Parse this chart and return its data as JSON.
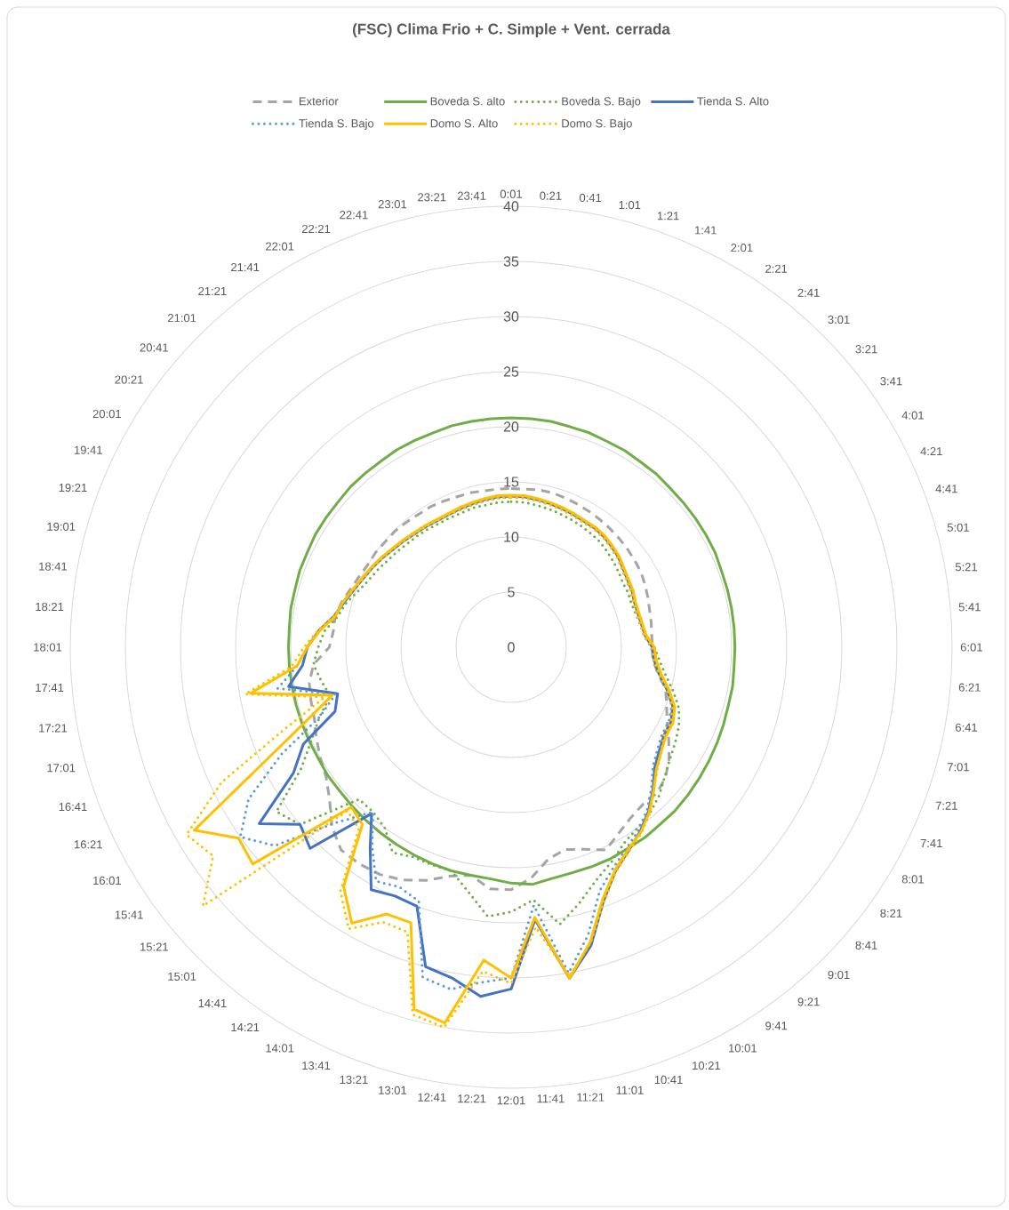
{
  "chart_data": {
    "type": "radar",
    "title": "(FSC) Clima Frio + C. Simple + Vent. cerrada",
    "categories": [
      "0:01",
      "0:21",
      "0:41",
      "1:01",
      "1:21",
      "1:41",
      "2:01",
      "2:21",
      "2:41",
      "3:01",
      "3:21",
      "3:41",
      "4:01",
      "4:21",
      "4:41",
      "5:01",
      "5:21",
      "5:41",
      "6:01",
      "6:21",
      "6:41",
      "7:01",
      "7:21",
      "7:41",
      "8:01",
      "8:21",
      "8:41",
      "9:01",
      "9:21",
      "9:41",
      "10:01",
      "10:21",
      "10:41",
      "11:01",
      "11:21",
      "11:41",
      "12:01",
      "12:21",
      "12:41",
      "13:01",
      "13:21",
      "13:41",
      "14:01",
      "14:21",
      "14:41",
      "15:01",
      "15:21",
      "15:41",
      "16:01",
      "16:21",
      "16:41",
      "17:01",
      "17:21",
      "17:41",
      "18:01",
      "18:21",
      "18:41",
      "19:01",
      "19:21",
      "19:41",
      "20:01",
      "20:21",
      "20:41",
      "21:01",
      "21:21",
      "21:41",
      "22:01",
      "22:21",
      "22:41",
      "23:01",
      "23:21",
      "23:41"
    ],
    "ylim": [
      0,
      40
    ],
    "yticks": [
      0,
      5,
      10,
      15,
      20,
      25,
      30,
      35,
      40
    ],
    "grid": true,
    "legend": "top",
    "series": [
      {
        "name": "Exterior",
        "color": "#a5a5a5",
        "line_style": "dashed",
        "values": [
          14.4,
          14.4,
          14.5,
          14.5,
          14.4,
          14.3,
          14.2,
          14.1,
          14.0,
          13.9,
          13.8,
          13.7,
          13.6,
          13.4,
          13.2,
          13.0,
          12.9,
          12.8,
          12.8,
          12.9,
          13.5,
          14.5,
          15.0,
          15.6,
          16.5,
          17.5,
          18.3,
          18.7,
          18.6,
          18.9,
          19.5,
          20.3,
          19.5,
          19.0,
          19.5,
          21.0,
          22.0,
          22.0,
          21.0,
          21.5,
          22.5,
          23.3,
          23.8,
          24.0,
          24.0,
          23.0,
          21.5,
          20.5,
          20.0,
          19.5,
          19.0,
          18.8,
          18.6,
          18.0,
          16.5,
          16.2,
          16.2,
          15.9,
          15.5,
          15.2,
          15.0,
          15.0,
          14.9,
          14.9,
          14.8,
          14.7,
          14.7,
          14.6,
          14.5,
          14.5,
          14.4,
          14.4
        ]
      },
      {
        "name": "Boveda S. alto",
        "color": "#70ad47",
        "line_style": "solid",
        "values": [
          20.8,
          20.8,
          20.8,
          20.7,
          20.7,
          20.6,
          20.6,
          20.5,
          20.5,
          20.4,
          20.4,
          20.4,
          20.4,
          20.4,
          20.3,
          20.3,
          20.3,
          20.3,
          20.3,
          20.3,
          20.4,
          20.4,
          20.5,
          20.6,
          20.7,
          20.8,
          20.9,
          21.0,
          21.0,
          21.1,
          21.1,
          21.2,
          21.2,
          21.2,
          21.3,
          21.6,
          21.4,
          21.1,
          21.0,
          21.0,
          20.9,
          20.8,
          20.7,
          20.6,
          20.5,
          20.4,
          20.3,
          20.3,
          20.2,
          20.2,
          20.2,
          20.2,
          20.2,
          20.2,
          20.2,
          20.2,
          20.3,
          20.3,
          20.4,
          20.4,
          20.5,
          20.5,
          20.5,
          20.6,
          20.6,
          20.6,
          20.7,
          20.7,
          20.7,
          20.8,
          20.8,
          20.8
        ]
      },
      {
        "name": "Boveda S. Bajo",
        "color": "#70ad47",
        "line_style": "dotted",
        "values": [
          13.2,
          13.2,
          13.1,
          13.0,
          12.9,
          12.8,
          12.7,
          12.6,
          12.5,
          12.3,
          12.1,
          11.9,
          11.7,
          11.7,
          11.6,
          11.7,
          11.9,
          12.3,
          13.0,
          13.5,
          14.2,
          15.2,
          16.2,
          16.8,
          17.2,
          17.6,
          18.2,
          19.0,
          19.6,
          20.0,
          20.5,
          21.5,
          22.5,
          24.0,
          25.5,
          23.0,
          24.0,
          24.5,
          22.5,
          21.0,
          21.0,
          21.0,
          21.5,
          20.0,
          19.5,
          19.5,
          25.0,
          26.0,
          22.0,
          20.0,
          18.5,
          17.0,
          17.5,
          18.0,
          17.5,
          17.0,
          16.0,
          15.5,
          14.8,
          14.3,
          14.0,
          13.7,
          13.5,
          13.3,
          13.2,
          13.1,
          13.0,
          13.0,
          13.0,
          13.1,
          13.1,
          13.2
        ]
      },
      {
        "name": "Tienda S. Alto",
        "color": "#4472c4",
        "line_style": "solid",
        "values": [
          13.7,
          13.7,
          13.6,
          13.5,
          13.4,
          13.3,
          13.2,
          13.2,
          13.1,
          12.9,
          12.7,
          12.4,
          12.2,
          12.1,
          11.9,
          11.9,
          12.0,
          12.2,
          12.8,
          13.0,
          13.6,
          14.6,
          15.6,
          16.0,
          16.0,
          16.4,
          17.0,
          18.2,
          19.4,
          20.4,
          21.3,
          22.4,
          24.5,
          28.0,
          30.5,
          24.8,
          31.0,
          31.8,
          30.5,
          30.0,
          25.0,
          24.9,
          25.4,
          22.3,
          19.7,
          25.8,
          25.0,
          27.9,
          22.8,
          20.8,
          17.0,
          16.3,
          20.5,
          19.0,
          18.5,
          17.5,
          16.3,
          15.7,
          15.2,
          14.8,
          14.5,
          14.2,
          13.9,
          13.7,
          13.5,
          13.4,
          13.3,
          13.3,
          13.4,
          13.5,
          13.6,
          13.7
        ]
      },
      {
        "name": "Tienda S. Bajo",
        "color": "#5b9bd5",
        "line_style": "dotted",
        "values": [
          13.6,
          13.6,
          13.5,
          13.4,
          13.3,
          13.2,
          13.1,
          13.1,
          13.0,
          12.8,
          12.6,
          12.3,
          12.1,
          12.0,
          11.8,
          11.8,
          11.9,
          12.1,
          12.7,
          13.0,
          13.6,
          14.6,
          15.5,
          15.8,
          15.8,
          16.2,
          16.8,
          18.0,
          19.2,
          20.2,
          21.0,
          22.0,
          23.5,
          27.0,
          30.0,
          23.5,
          30.0,
          30.5,
          31.5,
          31.0,
          24.5,
          24.0,
          24.5,
          22.0,
          19.5,
          22.5,
          28.0,
          30.0,
          27.5,
          23.0,
          18.5,
          16.5,
          21.5,
          19.5,
          18.5,
          17.5,
          16.3,
          15.7,
          15.2,
          14.8,
          14.5,
          14.2,
          13.9,
          13.7,
          13.5,
          13.4,
          13.3,
          13.3,
          13.3,
          13.4,
          13.5,
          13.6
        ]
      },
      {
        "name": "Domo S. Alto",
        "color": "#ffc000",
        "line_style": "solid",
        "values": [
          13.8,
          13.8,
          13.7,
          13.6,
          13.5,
          13.4,
          13.3,
          13.3,
          13.2,
          13.0,
          12.8,
          12.5,
          12.3,
          12.2,
          12.0,
          12.0,
          12.1,
          12.3,
          13.0,
          13.2,
          13.8,
          14.8,
          15.8,
          16.2,
          16.2,
          16.6,
          17.2,
          18.3,
          19.5,
          20.5,
          21.2,
          22.3,
          24.3,
          27.7,
          30.5,
          24.6,
          30.0,
          28.5,
          34.6,
          34.0,
          26.6,
          26.7,
          28.9,
          26.5,
          21.0,
          20.5,
          30.6,
          30.2,
          33.2,
          24.8,
          19.9,
          16.8,
          24.0,
          19.5,
          18.5,
          17.4,
          16.2,
          15.8,
          15.3,
          14.9,
          14.6,
          14.3,
          14.0,
          13.8,
          13.6,
          13.5,
          13.4,
          13.4,
          13.5,
          13.6,
          13.7,
          13.8
        ]
      },
      {
        "name": "Domo S. Bajo",
        "color": "#ffc000",
        "line_style": "dotted",
        "values": [
          13.6,
          13.6,
          13.5,
          13.4,
          13.3,
          13.2,
          13.1,
          13.1,
          13.0,
          12.8,
          12.6,
          12.3,
          12.1,
          12.0,
          11.8,
          11.8,
          11.9,
          12.1,
          12.8,
          13.0,
          13.6,
          14.6,
          15.6,
          16.0,
          16.0,
          16.6,
          17.3,
          18.3,
          19.6,
          20.6,
          21.4,
          22.5,
          24.6,
          27.8,
          30.3,
          25.5,
          30.5,
          29.5,
          35.0,
          34.5,
          27.5,
          27.5,
          29.5,
          27.0,
          21.5,
          21.0,
          36.5,
          33.0,
          34.0,
          29.0,
          22.0,
          17.5,
          24.5,
          20.0,
          18.8,
          17.6,
          16.3,
          15.8,
          15.2,
          14.8,
          14.5,
          14.2,
          13.9,
          13.7,
          13.5,
          13.4,
          13.3,
          13.3,
          13.3,
          13.4,
          13.5,
          13.6
        ]
      }
    ]
  }
}
